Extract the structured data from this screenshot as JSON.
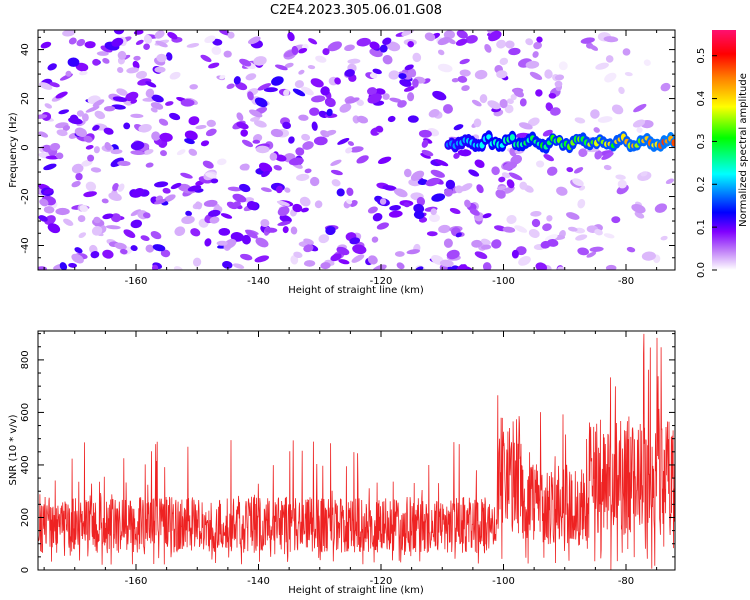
{
  "title": "C2E4.2023.305.06.01.G08",
  "chart_data": [
    {
      "type": "heatmap",
      "xlabel": "Height of straight line (km)",
      "ylabel": "Frequency (Hz)",
      "xlim": [
        -176,
        -72
      ],
      "ylim": [
        -50,
        48
      ],
      "x_ticks": [
        -160,
        -140,
        -120,
        -100,
        -80
      ],
      "y_ticks": [
        -40,
        -20,
        0,
        20,
        40
      ],
      "colorbar": {
        "label": "Normalized spectral amplitude",
        "range": [
          0,
          0.56
        ],
        "ticks": [
          0.0,
          0.1,
          0.2,
          0.3,
          0.4,
          0.5
        ],
        "colormap": [
          "#ffffff",
          "#a020f0",
          "#0000ff",
          "#00ffff",
          "#00ff00",
          "#ffff00",
          "#ff8000",
          "#ff0000",
          "#ff00a0"
        ]
      },
      "signal_track": {
        "x_start": -109,
        "x_end": -72,
        "frequency": 2,
        "max_amplitude": 0.56
      },
      "noise_amplitude_range": [
        0.02,
        0.12
      ],
      "grid": false
    },
    {
      "type": "line",
      "xlabel": "Height of straight line (km)",
      "ylabel": "SNR (10 * v/v)",
      "xlim": [
        -176,
        -72
      ],
      "ylim": [
        0,
        910
      ],
      "x_ticks": [
        -160,
        -140,
        -120,
        -100,
        -80
      ],
      "y_ticks": [
        0,
        200,
        400,
        600,
        800
      ],
      "color": "#ee2222",
      "segments": [
        {
          "x_start": -176,
          "x_end": -101,
          "min": 20,
          "typical": 180,
          "max": 500
        },
        {
          "x_start": -101,
          "x_end": -97,
          "min": 40,
          "typical": 380,
          "max": 680
        },
        {
          "x_start": -97,
          "x_end": -86,
          "min": 20,
          "typical": 260,
          "max": 650
        },
        {
          "x_start": -86,
          "x_end": -72,
          "min": 0,
          "typical": 380,
          "max": 900
        }
      ],
      "grid": false
    }
  ]
}
